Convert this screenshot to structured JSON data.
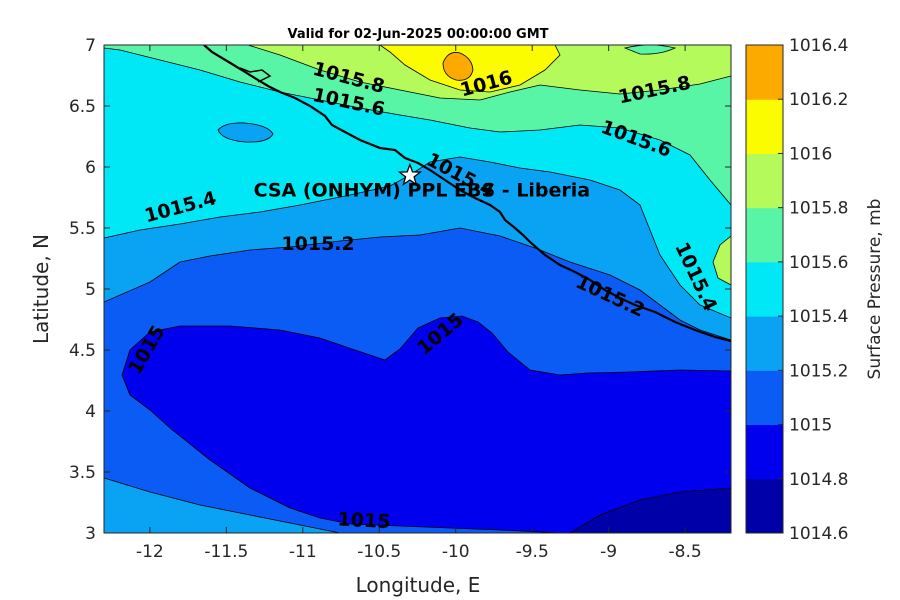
{
  "title": "Valid for 02-Jun-2025 00:00:00 GMT",
  "map": {
    "xlabel": "Longitude, E",
    "ylabel": "Latitude, N",
    "xlim": [
      -12.3,
      -8.2
    ],
    "ylim": [
      3,
      7
    ],
    "xticks": [
      {
        "value": -12,
        "label": "-12"
      },
      {
        "value": -11.5,
        "label": "-11.5"
      },
      {
        "value": -11,
        "label": "-11"
      },
      {
        "value": -10.5,
        "label": "-10.5"
      },
      {
        "value": -10,
        "label": "-10"
      },
      {
        "value": -9.5,
        "label": "-9.5"
      },
      {
        "value": -9,
        "label": "-9"
      },
      {
        "value": -8.5,
        "label": "-8.5"
      }
    ],
    "yticks": [
      {
        "value": 3,
        "label": "3"
      },
      {
        "value": 3.5,
        "label": "3.5"
      },
      {
        "value": 4,
        "label": "4"
      },
      {
        "value": 4.5,
        "label": "4.5"
      },
      {
        "value": 5,
        "label": "5"
      },
      {
        "value": 5.5,
        "label": "5.5"
      },
      {
        "value": 6,
        "label": "6"
      },
      {
        "value": 6.5,
        "label": "6.5"
      },
      {
        "value": 7,
        "label": "7"
      }
    ],
    "site": {
      "name": "CSA (ONHYM) PPL EBS - Liberia",
      "lon": -10.3,
      "lat": 5.93
    }
  },
  "colorbar": {
    "title": "Surface Pressure, mb",
    "levels": [
      {
        "value": "1014.6",
        "color": "#0000a8"
      },
      {
        "value": "1014.8",
        "color": "#0000ef"
      },
      {
        "value": "1015",
        "color": "#0a5cf5"
      },
      {
        "value": "1015.2",
        "color": "#0aa2f2"
      },
      {
        "value": "1015.4",
        "color": "#00e8f5"
      },
      {
        "value": "1015.6",
        "color": "#58f5a7"
      },
      {
        "value": "1015.8",
        "color": "#b4fa5a"
      },
      {
        "value": "1016",
        "color": "#fcfc00"
      },
      {
        "value": "1016.2",
        "color": "#fcaa00"
      },
      {
        "value": "1016.4",
        "color": "#fc5a00"
      }
    ]
  },
  "contour_labels": [
    {
      "text": "1015.8",
      "lon": -10.7,
      "lat": 6.73,
      "angle": 15
    },
    {
      "text": "1016",
      "lon": -9.8,
      "lat": 6.68,
      "angle": -15
    },
    {
      "text": "1015.8",
      "lon": -8.7,
      "lat": 6.63,
      "angle": -12
    },
    {
      "text": "1015.6",
      "lon": -10.7,
      "lat": 6.53,
      "angle": 12
    },
    {
      "text": "1015.6",
      "lon": -8.82,
      "lat": 6.23,
      "angle": 20
    },
    {
      "text": "1015.4",
      "lon": -9.97,
      "lat": 5.93,
      "angle": 28
    },
    {
      "text": "1015.4",
      "lon": -11.8,
      "lat": 5.67,
      "angle": -15
    },
    {
      "text": "1015.2",
      "lon": -10.9,
      "lat": 5.37,
      "angle": 0
    },
    {
      "text": "1015.4",
      "lon": -8.43,
      "lat": 5.1,
      "angle": 65
    },
    {
      "text": "1015.2",
      "lon": -8.99,
      "lat": 4.94,
      "angle": 25
    },
    {
      "text": "1015",
      "lon": -10.1,
      "lat": 4.63,
      "angle": -40
    },
    {
      "text": "1015",
      "lon": -12.02,
      "lat": 4.5,
      "angle": -60
    },
    {
      "text": "1015",
      "lon": -10.6,
      "lat": 3.1,
      "angle": 3
    }
  ]
}
